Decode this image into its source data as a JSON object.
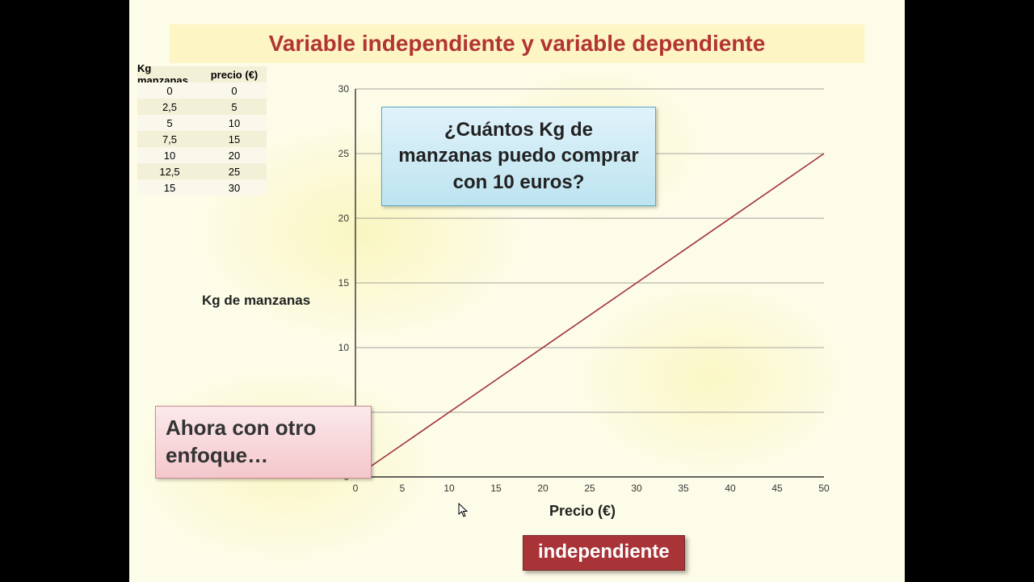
{
  "title": "Variable independiente y variable dependiente",
  "table": {
    "headers": [
      "Kg manzanas",
      "precio (€)"
    ],
    "rows": [
      [
        "0",
        "0"
      ],
      [
        "2,5",
        "5"
      ],
      [
        "5",
        "10"
      ],
      [
        "7,5",
        "15"
      ],
      [
        "10",
        "20"
      ],
      [
        "12,5",
        "25"
      ],
      [
        "15",
        "30"
      ]
    ]
  },
  "chart": {
    "type": "line",
    "xlim": [
      0,
      50
    ],
    "ylim": [
      0,
      30
    ],
    "xticks": [
      0,
      5,
      10,
      15,
      20,
      25,
      30,
      35,
      40,
      45,
      50
    ],
    "yticks": [
      0,
      5,
      10,
      15,
      20,
      25,
      30
    ],
    "xlabel": "Precio (€)",
    "ylabel": "Kg de manzanas",
    "line": {
      "points": [
        [
          0,
          0
        ],
        [
          50,
          25
        ]
      ],
      "color": "#a03040",
      "width": 1.6
    },
    "grid_color": "#888888",
    "axis_color": "#333333",
    "background_color": "transparent",
    "tick_fontsize": 12,
    "label_fontsize": 17
  },
  "callout_text": "¿Cuántos Kg de manzanas puedo comprar con 10 euros?",
  "pinkbox_text": "Ahora con otro enfoque…",
  "badge_text": "independiente",
  "colors": {
    "title_color": "#b33434",
    "title_band_bg": "#fdf6c4",
    "slide_bg": "#fdfce8",
    "callout_bg_top": "#e0f2fa",
    "callout_bg_bottom": "#bde4f0",
    "callout_border": "#5aa9c8",
    "pink_bg_top": "#fbe9eb",
    "pink_bg_bottom": "#f4c7cc",
    "pink_border": "#c98a92",
    "badge_bg": "#a83438"
  }
}
